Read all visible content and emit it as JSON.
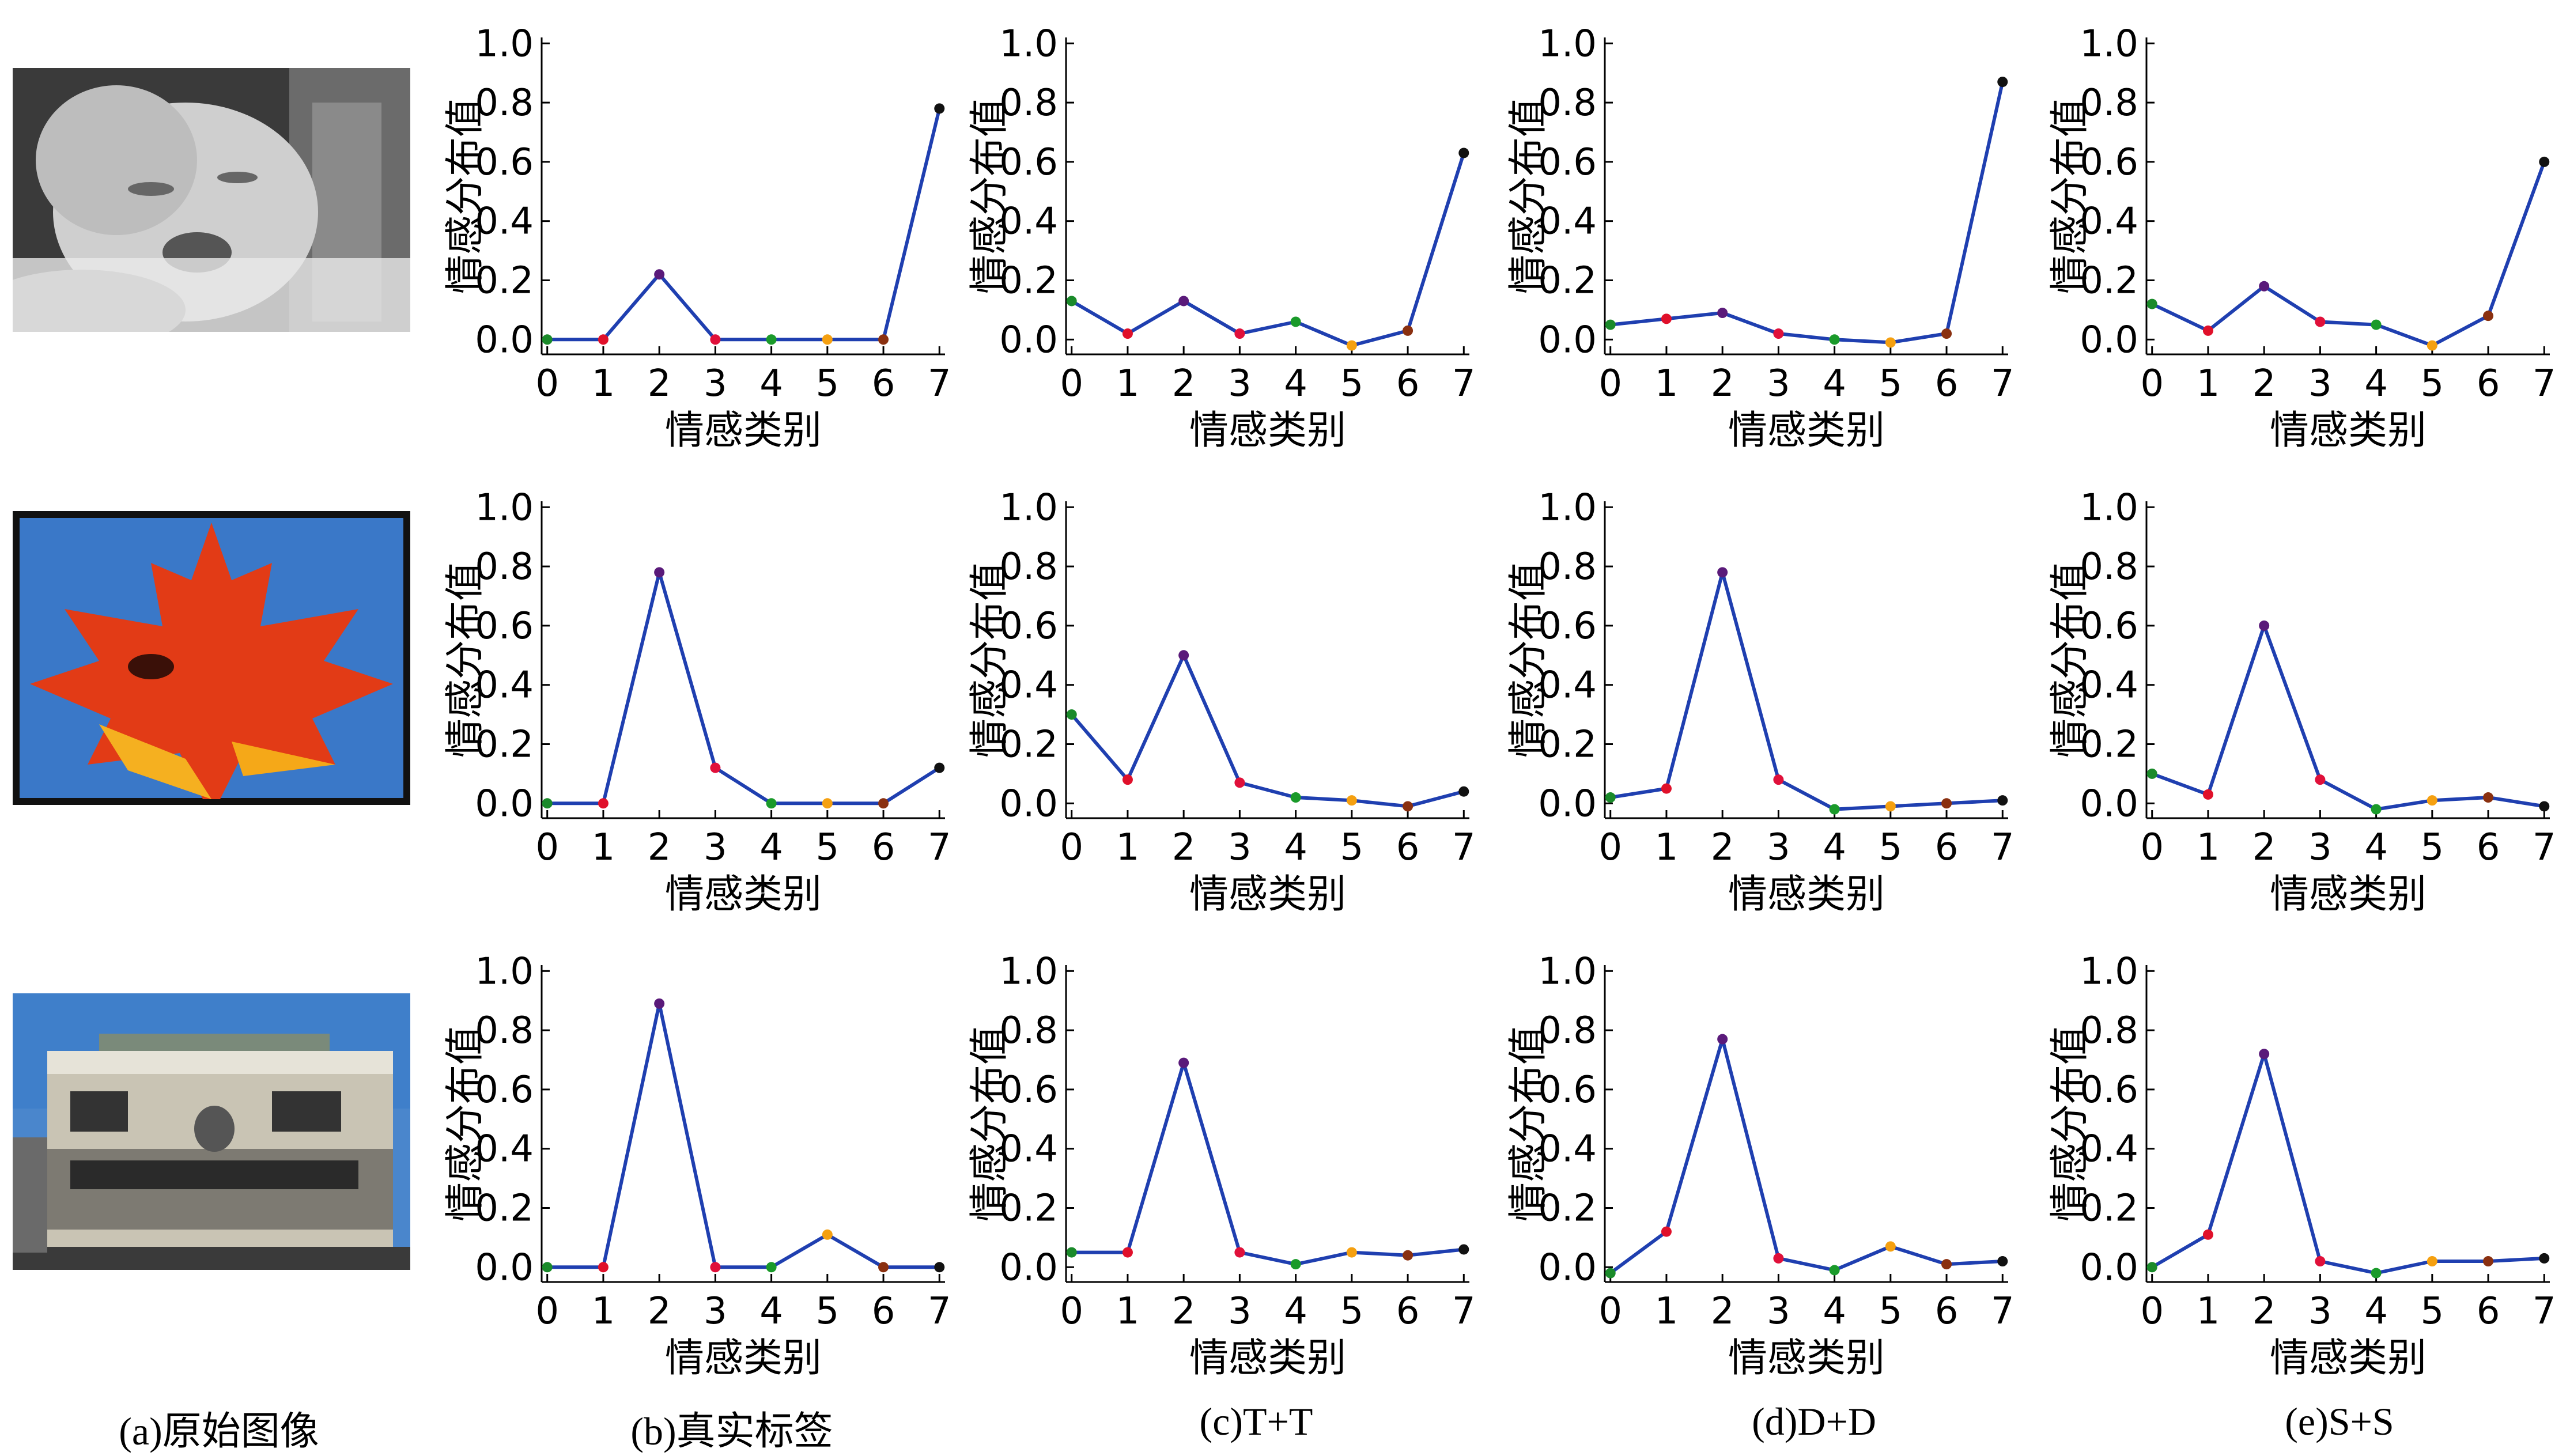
{
  "captions": {
    "original": "(a)原始图像",
    "truth": "(b)真实标签",
    "tt": "(c)T+T",
    "dd": "(d)D+D",
    "ss": "(e)S+S"
  },
  "axis_text": {
    "xlabel": "情感类别",
    "ylabel": "情感分布值",
    "yticks": [
      "0.0",
      "0.2",
      "0.4",
      "0.6",
      "0.8",
      "1.0"
    ],
    "xticks": [
      "0",
      "1",
      "2",
      "3",
      "4",
      "5",
      "6",
      "7"
    ]
  },
  "colors": {
    "line": "#1f3fb0",
    "points": [
      "#1a8a2a",
      "#e0102a",
      "#5a1a7a",
      "#e0103a",
      "#1a9a2a",
      "#f5a010",
      "#8a3010",
      "#111111"
    ]
  },
  "chart_data": [
    {
      "row": 0,
      "col": "truth",
      "type": "line",
      "xlabel": "情感类别",
      "ylabel": "情感分布值",
      "x": [
        0,
        1,
        2,
        3,
        4,
        5,
        6,
        7
      ],
      "ylim": [
        0,
        1.0
      ],
      "values": [
        0.0,
        0.0,
        0.22,
        0.0,
        0.0,
        0.0,
        0.0,
        0.78
      ]
    },
    {
      "row": 0,
      "col": "tt",
      "type": "line",
      "xlabel": "情感类别",
      "ylabel": "情感分布值",
      "x": [
        0,
        1,
        2,
        3,
        4,
        5,
        6,
        7
      ],
      "ylim": [
        0,
        1.0
      ],
      "values": [
        0.13,
        0.02,
        0.13,
        0.02,
        0.06,
        -0.02,
        0.03,
        0.63
      ]
    },
    {
      "row": 0,
      "col": "dd",
      "type": "line",
      "xlabel": "情感类别",
      "ylabel": "情感分布值",
      "x": [
        0,
        1,
        2,
        3,
        4,
        5,
        6,
        7
      ],
      "ylim": [
        0,
        1.0
      ],
      "values": [
        0.05,
        0.07,
        0.09,
        0.02,
        0.0,
        -0.01,
        0.02,
        0.87
      ]
    },
    {
      "row": 0,
      "col": "ss",
      "type": "line",
      "xlabel": "情感类别",
      "ylabel": "情感分布值",
      "x": [
        0,
        1,
        2,
        3,
        4,
        5,
        6,
        7
      ],
      "ylim": [
        0,
        1.0
      ],
      "values": [
        0.12,
        0.03,
        0.18,
        0.06,
        0.05,
        -0.02,
        0.08,
        0.6
      ]
    },
    {
      "row": 1,
      "col": "truth",
      "type": "line",
      "xlabel": "情感类别",
      "ylabel": "情感分布值",
      "x": [
        0,
        1,
        2,
        3,
        4,
        5,
        6,
        7
      ],
      "ylim": [
        0,
        1.0
      ],
      "values": [
        0.0,
        0.0,
        0.78,
        0.12,
        0.0,
        0.0,
        0.0,
        0.12
      ]
    },
    {
      "row": 1,
      "col": "tt",
      "type": "line",
      "xlabel": "情感类别",
      "ylabel": "情感分布值",
      "x": [
        0,
        1,
        2,
        3,
        4,
        5,
        6,
        7
      ],
      "ylim": [
        0,
        1.0
      ],
      "values": [
        0.3,
        0.08,
        0.5,
        0.07,
        0.02,
        0.01,
        -0.01,
        0.04
      ]
    },
    {
      "row": 1,
      "col": "dd",
      "type": "line",
      "xlabel": "情感类别",
      "ylabel": "情感分布值",
      "x": [
        0,
        1,
        2,
        3,
        4,
        5,
        6,
        7
      ],
      "ylim": [
        0,
        1.0
      ],
      "values": [
        0.02,
        0.05,
        0.78,
        0.08,
        -0.02,
        -0.01,
        0.0,
        0.01
      ]
    },
    {
      "row": 1,
      "col": "ss",
      "type": "line",
      "xlabel": "情感类别",
      "ylabel": "情感分布值",
      "x": [
        0,
        1,
        2,
        3,
        4,
        5,
        6,
        7
      ],
      "ylim": [
        0,
        1.0
      ],
      "values": [
        0.1,
        0.03,
        0.6,
        0.08,
        -0.02,
        0.01,
        0.02,
        -0.01
      ]
    },
    {
      "row": 2,
      "col": "truth",
      "type": "line",
      "xlabel": "情感类别",
      "ylabel": "情感分布值",
      "x": [
        0,
        1,
        2,
        3,
        4,
        5,
        6,
        7
      ],
      "ylim": [
        0,
        1.0
      ],
      "values": [
        0.0,
        0.0,
        0.89,
        0.0,
        0.0,
        0.11,
        0.0,
        0.0
      ]
    },
    {
      "row": 2,
      "col": "tt",
      "type": "line",
      "xlabel": "情感类别",
      "ylabel": "情感分布值",
      "x": [
        0,
        1,
        2,
        3,
        4,
        5,
        6,
        7
      ],
      "ylim": [
        0,
        1.0
      ],
      "values": [
        0.05,
        0.05,
        0.69,
        0.05,
        0.01,
        0.05,
        0.04,
        0.06
      ]
    },
    {
      "row": 2,
      "col": "dd",
      "type": "line",
      "xlabel": "情感类别",
      "ylabel": "情感分布值",
      "x": [
        0,
        1,
        2,
        3,
        4,
        5,
        6,
        7
      ],
      "ylim": [
        0,
        1.0
      ],
      "values": [
        -0.02,
        0.12,
        0.77,
        0.03,
        -0.01,
        0.07,
        0.01,
        0.02
      ]
    },
    {
      "row": 2,
      "col": "ss",
      "type": "line",
      "xlabel": "情感类别",
      "ylabel": "情感分布值",
      "x": [
        0,
        1,
        2,
        3,
        4,
        5,
        6,
        7
      ],
      "ylim": [
        0,
        1.0
      ],
      "values": [
        0.0,
        0.11,
        0.72,
        0.02,
        -0.02,
        0.02,
        0.02,
        0.03
      ]
    }
  ]
}
